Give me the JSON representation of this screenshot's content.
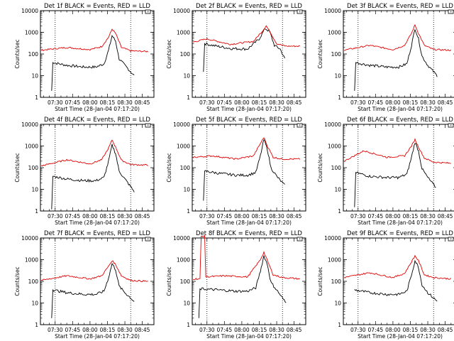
{
  "panel_titles": [
    "Det 1f BLACK = Events, RED = LLD",
    "Det 2f BLACK = Events, RED = LLD",
    "Det 3f BLACK = Events, RED = LLD",
    "Det 4f BLACK = Events, RED = LLD",
    "Det 5f BLACK = Events, RED = LLD",
    "Det 6f BLACK = Events, RED = LLD",
    "Det 7f BLACK = Events, RED = LLD",
    "Det 8f BLACK = Events, RED = LLD",
    "Det 9f BLACK = Events, RED = LLD"
  ],
  "colors": {
    "events": "#000000",
    "lld": "#e00000",
    "background": "#ffffff"
  },
  "chart_data": [
    {
      "type": "line",
      "title": "Det 1f BLACK = Events, RED = LLD",
      "xlabel": "Start Time (28-Jan-04 07:17:20)",
      "ylabel": "Counts/sec",
      "y_scale": "log",
      "ylim": [
        1,
        10000
      ],
      "x_ticks": [
        "07:30",
        "07:45",
        "08:00",
        "08:15",
        "08:30",
        "08:45"
      ],
      "y_ticks": [
        "1",
        "10",
        "100",
        "1000",
        "10000"
      ],
      "vlines": [
        "07:30",
        "08:35"
      ],
      "series": [
        {
          "name": "BLACK = Events",
          "x": [
            "07:27",
            "07:28",
            "07:40",
            "07:55",
            "08:05",
            "08:12",
            "08:16",
            "08:19",
            "08:22",
            "08:25",
            "08:30",
            "08:38"
          ],
          "y": [
            2,
            40,
            30,
            25,
            25,
            35,
            150,
            700,
            400,
            60,
            30,
            10
          ]
        },
        {
          "name": "RED = LLD",
          "x": [
            "07:18",
            "07:40",
            "08:00",
            "08:10",
            "08:16",
            "08:19",
            "08:22",
            "08:27",
            "08:35",
            "08:50"
          ],
          "y": [
            150,
            200,
            160,
            220,
            600,
            1400,
            900,
            200,
            140,
            130
          ]
        }
      ]
    },
    {
      "type": "line",
      "title": "Det 2f BLACK = Events, RED = LLD",
      "xlabel": "Start Time (28-Jan-04 07:17:20)",
      "ylabel": "Counts/sec",
      "y_scale": "log",
      "ylim": [
        1,
        10000
      ],
      "x_ticks": [
        "07:30",
        "07:45",
        "08:00",
        "08:15",
        "08:30",
        "08:45"
      ],
      "y_ticks": [
        "1",
        "10",
        "100",
        "1000",
        "10000"
      ],
      "vlines": [
        "07:30",
        "08:35"
      ],
      "series": [
        {
          "name": "BLACK = Events",
          "x": [
            "07:27",
            "07:28",
            "07:35",
            "07:50",
            "08:05",
            "08:15",
            "08:20",
            "08:24",
            "08:28",
            "08:33",
            "08:37"
          ],
          "y": [
            15,
            300,
            250,
            180,
            170,
            500,
            1500,
            1100,
            250,
            170,
            60
          ]
        },
        {
          "name": "RED = LLD",
          "x": [
            "07:18",
            "07:30",
            "07:50",
            "08:10",
            "08:18",
            "08:21",
            "08:25",
            "08:30",
            "08:38",
            "08:50"
          ],
          "y": [
            350,
            500,
            280,
            380,
            1200,
            2000,
            900,
            300,
            230,
            230
          ]
        }
      ]
    },
    {
      "type": "line",
      "title": "Det 3f BLACK = Events, RED = LLD",
      "xlabel": "Start Time (28-Jan-04 07:17:20)",
      "ylabel": "Counts/sec",
      "y_scale": "log",
      "ylim": [
        1,
        10000
      ],
      "x_ticks": [
        "07:30",
        "07:45",
        "08:00",
        "08:15",
        "08:30",
        "08:45"
      ],
      "y_ticks": [
        "1",
        "10",
        "100",
        "1000",
        "10000"
      ],
      "vlines": [
        "07:30",
        "08:35"
      ],
      "series": [
        {
          "name": "BLACK = Events",
          "x": [
            "07:27",
            "07:28",
            "07:40",
            "07:55",
            "08:05",
            "08:12",
            "08:16",
            "08:19",
            "08:22",
            "08:25",
            "08:30",
            "08:38"
          ],
          "y": [
            2,
            40,
            30,
            25,
            25,
            35,
            250,
            1500,
            500,
            80,
            30,
            10
          ]
        },
        {
          "name": "RED = LLD",
          "x": [
            "07:18",
            "07:40",
            "08:00",
            "08:10",
            "08:16",
            "08:19",
            "08:22",
            "08:27",
            "08:35",
            "08:50"
          ],
          "y": [
            150,
            250,
            160,
            250,
            900,
            2200,
            900,
            250,
            160,
            150
          ]
        }
      ]
    },
    {
      "type": "line",
      "title": "Det 4f BLACK = Events, RED = LLD",
      "xlabel": "Start Time (28-Jan-04 07:17:20)",
      "ylabel": "Counts/sec",
      "y_scale": "log",
      "ylim": [
        1,
        10000
      ],
      "x_ticks": [
        "07:30",
        "07:45",
        "08:00",
        "08:15",
        "08:30",
        "08:45"
      ],
      "y_ticks": [
        "1",
        "10",
        "100",
        "1000",
        "10000"
      ],
      "vlines": [
        "07:30",
        "08:35"
      ],
      "series": [
        {
          "name": "BLACK = Events",
          "x": [
            "07:27",
            "07:28",
            "07:40",
            "07:55",
            "08:05",
            "08:12",
            "08:16",
            "08:19",
            "08:22",
            "08:25",
            "08:30",
            "08:38"
          ],
          "y": [
            1.2,
            40,
            30,
            25,
            25,
            35,
            200,
            1100,
            450,
            70,
            30,
            8
          ]
        },
        {
          "name": "RED = LLD",
          "x": [
            "07:18",
            "07:40",
            "08:00",
            "08:10",
            "08:16",
            "08:19",
            "08:22",
            "08:27",
            "08:35",
            "08:50"
          ],
          "y": [
            120,
            230,
            150,
            230,
            800,
            1900,
            900,
            220,
            140,
            130
          ]
        }
      ]
    },
    {
      "type": "line",
      "title": "Det 5f BLACK = Events, RED = LLD",
      "xlabel": "Start Time (28-Jan-04 07:17:20)",
      "ylabel": "Counts/sec",
      "y_scale": "log",
      "ylim": [
        1,
        10000
      ],
      "x_ticks": [
        "07:30",
        "07:45",
        "08:00",
        "08:15",
        "08:30",
        "08:45"
      ],
      "y_ticks": [
        "1",
        "10",
        "100",
        "1000",
        "10000"
      ],
      "vlines": [
        "07:30",
        "08:35"
      ],
      "series": [
        {
          "name": "BLACK = Events",
          "x": [
            "07:27",
            "07:28",
            "07:40",
            "07:55",
            "08:05",
            "08:12",
            "08:16",
            "08:19",
            "08:22",
            "08:25",
            "08:30",
            "08:37"
          ],
          "y": [
            3,
            70,
            55,
            45,
            45,
            60,
            350,
            2000,
            700,
            100,
            40,
            15
          ]
        },
        {
          "name": "RED = LLD",
          "x": [
            "07:18",
            "07:35",
            "07:55",
            "08:10",
            "08:16",
            "08:19",
            "08:22",
            "08:27",
            "08:35",
            "08:50"
          ],
          "y": [
            300,
            350,
            250,
            350,
            1300,
            2500,
            1000,
            300,
            250,
            250
          ]
        }
      ]
    },
    {
      "type": "line",
      "title": "Det 6f BLACK = Events, RED = LLD",
      "xlabel": "Start Time (28-Jan-04 07:17:20)",
      "ylabel": "Counts/sec",
      "y_scale": "log",
      "ylim": [
        1,
        10000
      ],
      "x_ticks": [
        "07:30",
        "07:45",
        "08:00",
        "08:15",
        "08:30",
        "08:45"
      ],
      "y_ticks": [
        "1",
        "10",
        "100",
        "1000",
        "10000"
      ],
      "vlines": [
        "07:30",
        "08:35"
      ],
      "series": [
        {
          "name": "BLACK = Events",
          "x": [
            "07:27",
            "07:28",
            "07:40",
            "07:55",
            "08:05",
            "08:12",
            "08:16",
            "08:19",
            "08:22",
            "08:25",
            "08:30",
            "08:37"
          ],
          "y": [
            1.5,
            60,
            40,
            35,
            35,
            50,
            300,
            1500,
            600,
            90,
            35,
            12
          ]
        },
        {
          "name": "RED = LLD",
          "x": [
            "07:18",
            "07:35",
            "07:55",
            "08:10",
            "08:16",
            "08:19",
            "08:22",
            "08:27",
            "08:35",
            "08:50"
          ],
          "y": [
            200,
            600,
            300,
            350,
            1000,
            2000,
            900,
            280,
            180,
            160
          ]
        }
      ]
    },
    {
      "type": "line",
      "title": "Det 7f BLACK = Events, RED = LLD",
      "xlabel": "Start Time (28-Jan-04 07:17:20)",
      "ylabel": "Counts/sec",
      "y_scale": "log",
      "ylim": [
        1,
        10000
      ],
      "x_ticks": [
        "07:30",
        "07:45",
        "08:00",
        "08:15",
        "08:30",
        "08:45"
      ],
      "y_ticks": [
        "1",
        "10",
        "100",
        "1000",
        "10000"
      ],
      "vlines": [
        "07:30",
        "08:35"
      ],
      "series": [
        {
          "name": "BLACK = Events",
          "x": [
            "07:27",
            "07:28",
            "07:40",
            "07:55",
            "08:05",
            "08:12",
            "08:16",
            "08:19",
            "08:22",
            "08:25",
            "08:30",
            "08:38"
          ],
          "y": [
            2,
            40,
            30,
            25,
            25,
            35,
            150,
            650,
            350,
            60,
            30,
            12
          ]
        },
        {
          "name": "RED = LLD",
          "x": [
            "07:18",
            "07:40",
            "08:00",
            "08:10",
            "08:16",
            "08:19",
            "08:22",
            "08:27",
            "08:35",
            "08:50"
          ],
          "y": [
            110,
            180,
            130,
            180,
            500,
            900,
            600,
            180,
            110,
            100
          ]
        }
      ]
    },
    {
      "type": "line",
      "title": "Det 8f BLACK = Events, RED = LLD",
      "xlabel": "Start Time (28-Jan-04 07:17:20)",
      "ylabel": "Counts/sec",
      "y_scale": "log",
      "ylim": [
        1,
        10000
      ],
      "x_ticks": [
        "07:30",
        "07:45",
        "08:00",
        "08:15",
        "08:30",
        "08:45"
      ],
      "y_ticks": [
        "1",
        "10",
        "100",
        "1000",
        "10000"
      ],
      "vlines": [
        "07:30",
        "08:35"
      ],
      "series": [
        {
          "name": "BLACK = Events",
          "x": [
            "07:23",
            "07:24",
            "07:40",
            "07:55",
            "08:05",
            "08:12",
            "08:16",
            "08:19",
            "08:22",
            "08:25",
            "08:30",
            "08:38"
          ],
          "y": [
            2,
            45,
            40,
            35,
            35,
            50,
            300,
            1500,
            600,
            90,
            40,
            10
          ]
        },
        {
          "name": "RED = LLD",
          "x": [
            "07:18",
            "07:24",
            "07:25",
            "07:28",
            "07:29",
            "07:45",
            "08:05",
            "08:16",
            "08:19",
            "08:22",
            "08:27",
            "08:35",
            "08:50"
          ],
          "y": [
            130,
            130,
            12000,
            12000,
            160,
            180,
            160,
            1000,
            2200,
            900,
            200,
            150,
            130
          ]
        }
      ]
    },
    {
      "type": "line",
      "title": "Det 9f BLACK = Events, RED = LLD",
      "xlabel": "Start Time (28-Jan-04 07:17:20)",
      "ylabel": "Counts/sec",
      "y_scale": "log",
      "ylim": [
        1,
        10000
      ],
      "x_ticks": [
        "07:30",
        "07:45",
        "08:00",
        "08:15",
        "08:30",
        "08:45"
      ],
      "y_ticks": [
        "1",
        "10",
        "100",
        "1000",
        "10000"
      ],
      "vlines": [
        "07:30",
        "08:35"
      ],
      "series": [
        {
          "name": "BLACK = Events",
          "x": [
            "07:27",
            "07:40",
            "07:55",
            "08:05",
            "08:12",
            "08:16",
            "08:19",
            "08:22",
            "08:25",
            "08:30",
            "08:38"
          ],
          "y": [
            40,
            30,
            25,
            25,
            35,
            200,
            900,
            450,
            70,
            30,
            12
          ]
        },
        {
          "name": "RED = LLD",
          "x": [
            "07:18",
            "07:40",
            "08:00",
            "08:10",
            "08:16",
            "08:19",
            "08:22",
            "08:27",
            "08:35",
            "08:50"
          ],
          "y": [
            150,
            250,
            150,
            230,
            800,
            1500,
            900,
            200,
            150,
            130
          ]
        }
      ]
    }
  ]
}
